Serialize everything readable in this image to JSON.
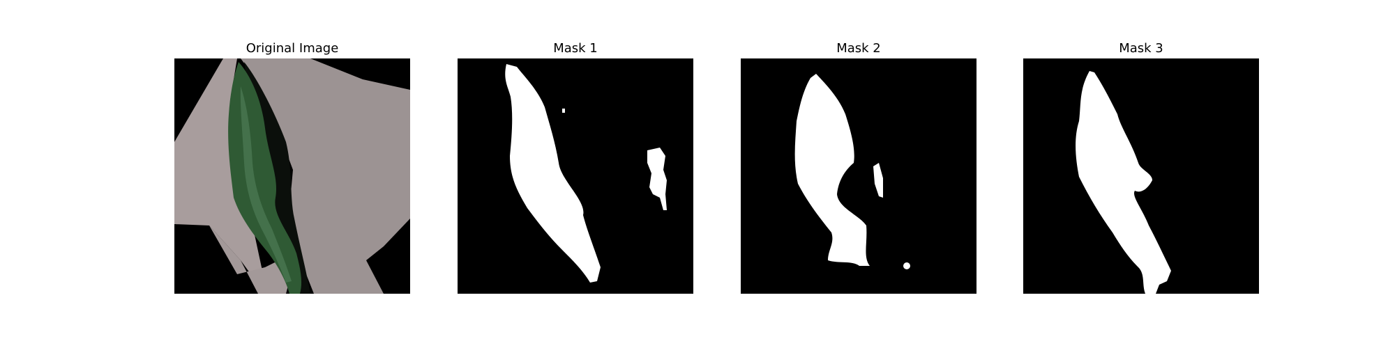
{
  "panels": [
    {
      "title": "Original Image"
    },
    {
      "title": "Mask 1"
    },
    {
      "title": "Mask 2"
    },
    {
      "title": "Mask 3"
    }
  ],
  "colors": {
    "mask_bg": "#000000",
    "mask_fg": "#ffffff",
    "paper": "#a89d9d",
    "leaf": "#2f5a34",
    "shadow": "#0b0f0b"
  }
}
